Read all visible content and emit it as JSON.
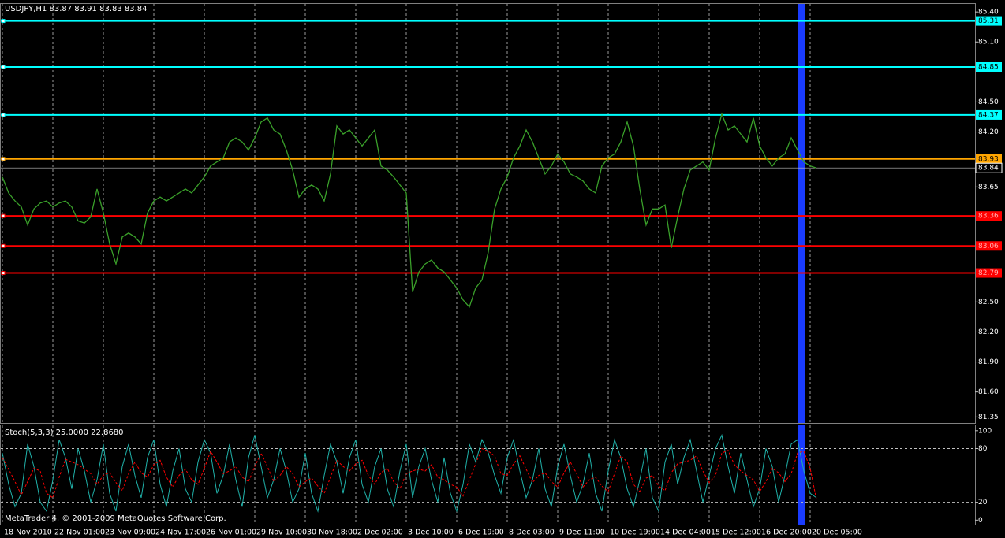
{
  "chart_data": [
    {
      "type": "line",
      "title": "USDJPY,H1  83.87 83.91 83.83 83.84",
      "categories": [
        "18 Nov 2010",
        null,
        null,
        null,
        null,
        null,
        null,
        null,
        "22 Nov 01:00",
        null,
        null,
        null,
        null,
        null,
        null,
        null,
        "23 Nov 09:00",
        null,
        null,
        null,
        null,
        null,
        null,
        null,
        "24 Nov 17:00",
        null,
        null,
        null,
        null,
        null,
        null,
        null,
        "26 Nov 01:00",
        null,
        null,
        null,
        null,
        null,
        null,
        null,
        "29 Nov 10:00",
        null,
        null,
        null,
        null,
        null,
        null,
        null,
        "30 Nov 18:00",
        null,
        null,
        null,
        null,
        null,
        null,
        null,
        "2 Dec 02:00",
        null,
        null,
        null,
        null,
        null,
        null,
        null,
        "3 Dec 10:00",
        null,
        null,
        null,
        null,
        null,
        null,
        null,
        "6 Dec 19:00",
        null,
        null,
        null,
        null,
        null,
        null,
        null,
        "8 Dec 03:00",
        null,
        null,
        null,
        null,
        null,
        null,
        null,
        "9 Dec 11:00",
        null,
        null,
        null,
        null,
        null,
        null,
        null,
        "10 Dec 19:00",
        null,
        null,
        null,
        null,
        null,
        null,
        null,
        "14 Dec 04:00",
        null,
        null,
        null,
        null,
        null,
        null,
        null,
        "15 Dec 12:00",
        null,
        null,
        null,
        null,
        null,
        null,
        null,
        "16 Dec 20:00",
        null,
        null,
        null,
        null,
        null,
        null,
        null,
        "20 Dec 05:00",
        null
      ],
      "series": [
        {
          "color": "#3aa02a",
          "values": [
            83.75,
            83.59,
            83.51,
            83.45,
            83.27,
            83.43,
            83.49,
            83.51,
            83.45,
            83.49,
            83.51,
            83.45,
            83.31,
            83.29,
            83.35,
            83.63,
            83.39,
            83.08,
            82.88,
            83.15,
            83.19,
            83.15,
            83.08,
            83.39,
            83.51,
            83.55,
            83.51,
            83.55,
            83.59,
            83.63,
            83.59,
            83.67,
            83.75,
            83.86,
            83.9,
            83.94,
            84.1,
            84.14,
            84.1,
            84.02,
            84.14,
            84.3,
            84.34,
            84.22,
            84.18,
            84.02,
            83.82,
            83.55,
            83.63,
            83.67,
            83.63,
            83.51,
            83.78,
            84.26,
            84.18,
            84.22,
            84.14,
            84.06,
            84.14,
            84.22,
            83.86,
            83.82,
            83.75,
            83.67,
            83.59,
            82.6,
            82.8,
            82.88,
            82.92,
            82.84,
            82.8,
            82.72,
            82.64,
            82.52,
            82.45,
            82.64,
            82.72,
            83.0,
            83.43,
            83.63,
            83.75,
            83.94,
            84.06,
            84.22,
            84.1,
            83.94,
            83.78,
            83.86,
            83.98,
            83.9,
            83.78,
            83.75,
            83.71,
            83.63,
            83.59,
            83.86,
            83.94,
            83.98,
            84.1,
            84.3,
            84.06,
            83.63,
            83.27,
            83.43,
            83.43,
            83.47,
            83.04,
            83.35,
            83.63,
            83.82,
            83.86,
            83.9,
            83.82,
            84.14,
            84.38,
            84.22,
            84.26,
            84.18,
            84.1,
            84.34,
            84.06,
            83.94,
            83.86,
            83.94,
            83.98,
            84.14,
            84.02,
            83.9,
            83.86,
            83.84
          ]
        }
      ],
      "ylim": [
        81.29,
        85.48
      ],
      "yticks": [
        {
          "value": 85.4,
          "label": "85.40"
        },
        {
          "value": 85.1,
          "label": "85.10"
        },
        {
          "value": 84.5,
          "label": "84.50"
        },
        {
          "value": 84.2,
          "label": "84.20"
        },
        83.65,
        {
          "value": 82.5,
          "label": "82.50"
        },
        {
          "value": 82.2,
          "label": "82.20"
        },
        {
          "value": 81.9,
          "label": "81.90"
        },
        {
          "value": 81.6,
          "label": "81.60"
        },
        81.35
      ],
      "hlines": [
        {
          "value": 85.31,
          "color": "#00ffff"
        },
        {
          "value": 84.85,
          "color": "#00ffff"
        },
        {
          "value": 84.37,
          "color": "#00ffff"
        },
        {
          "value": 83.93,
          "color": "#ffa500"
        },
        {
          "value": 83.84,
          "color": "#c0c0c0"
        },
        {
          "value": 83.36,
          "color": "#ff0000"
        },
        {
          "value": 83.06,
          "color": "#ff0000"
        },
        {
          "value": 82.79,
          "color": "#ff0000"
        }
      ],
      "grid": true
    },
    {
      "type": "line",
      "title": "Stoch(5,3,3) 25.0000 22.8680",
      "series": [
        {
          "color": "#20b2aa",
          "values": [
            75,
            40,
            15,
            30,
            85,
            60,
            20,
            10,
            45,
            90,
            70,
            35,
            80,
            55,
            20,
            45,
            85,
            30,
            10,
            60,
            85,
            50,
            25,
            70,
            90,
            40,
            15,
            55,
            80,
            35,
            20,
            65,
            90,
            75,
            30,
            50,
            85,
            45,
            15,
            70,
            95,
            60,
            25,
            45,
            80,
            55,
            20,
            35,
            75,
            30,
            10,
            50,
            85,
            65,
            30,
            70,
            90,
            40,
            20,
            60,
            80,
            35,
            15,
            55,
            85,
            25,
            60,
            80,
            45,
            20,
            70,
            30,
            10,
            40,
            85,
            65,
            90,
            75,
            50,
            30,
            70,
            90,
            55,
            25,
            45,
            80,
            35,
            15,
            60,
            85,
            50,
            20,
            40,
            75,
            30,
            10,
            55,
            90,
            70,
            35,
            15,
            45,
            80,
            25,
            10,
            65,
            85,
            40,
            70,
            90,
            55,
            20,
            50,
            80,
            95,
            60,
            30,
            75,
            45,
            15,
            35,
            80,
            60,
            20,
            50,
            85,
            90,
            55,
            30,
            25
          ]
        },
        {
          "color": "#ff0000",
          "dashed": true,
          "values": [
            70,
            57,
            43,
            28,
            43,
            58,
            55,
            30,
            25,
            48,
            68,
            65,
            62,
            57,
            52,
            40,
            50,
            53,
            42,
            33,
            52,
            65,
            53,
            48,
            62,
            67,
            48,
            37,
            50,
            57,
            45,
            40,
            58,
            77,
            65,
            52,
            55,
            60,
            48,
            43,
            60,
            75,
            60,
            43,
            50,
            60,
            52,
            37,
            43,
            47,
            38,
            30,
            48,
            67,
            60,
            55,
            63,
            67,
            50,
            40,
            53,
            58,
            43,
            35,
            52,
            55,
            57,
            55,
            62,
            48,
            45,
            40,
            37,
            27,
            45,
            63,
            80,
            77,
            72,
            52,
            50,
            63,
            72,
            57,
            42,
            50,
            53,
            43,
            37,
            53,
            65,
            52,
            37,
            45,
            48,
            38,
            32,
            52,
            72,
            65,
            40,
            32,
            47,
            50,
            38,
            33,
            53,
            63,
            65,
            67,
            72,
            55,
            42,
            50,
            75,
            78,
            62,
            55,
            50,
            45,
            32,
            43,
            58,
            53,
            43,
            52,
            75,
            77,
            58,
            22.868
          ]
        }
      ],
      "ylim": [
        -5,
        106
      ],
      "yticks": [
        100,
        80,
        20,
        0
      ],
      "levels": [
        80,
        20
      ]
    }
  ],
  "footer": "MetaTrader 4, © 2001-2009 MetaQuotes Software Corp."
}
